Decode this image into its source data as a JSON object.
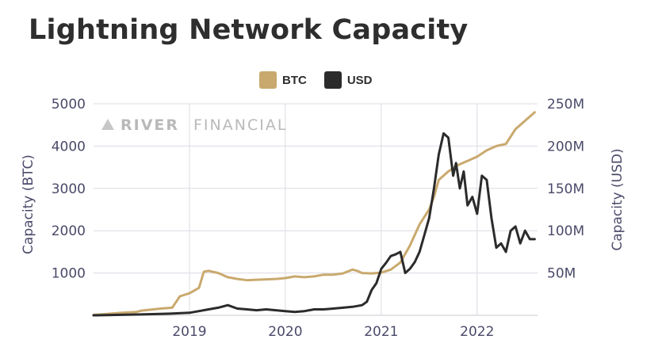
{
  "chart_data": {
    "type": "line",
    "title": "Lightning Network Capacity",
    "watermark": {
      "bold": "RIVER",
      "light": "FINANCIAL"
    },
    "left_axis": {
      "label": "Capacity (BTC)",
      "min": 0,
      "max": 5000,
      "ticks": [
        "1000",
        "2000",
        "3000",
        "4000",
        "5000"
      ],
      "tick_values": [
        1000,
        2000,
        3000,
        4000,
        5000
      ]
    },
    "right_axis": {
      "label": "Capacity (USD)",
      "min": 0,
      "max": 250,
      "ticks": [
        "50M",
        "100M",
        "150M",
        "200M",
        "250M"
      ],
      "tick_values": [
        50,
        100,
        150,
        200,
        250
      ]
    },
    "x_axis": {
      "min": 2018.0,
      "max": 2022.63,
      "ticks": [
        "2019",
        "2020",
        "2021",
        "2022"
      ],
      "tick_values": [
        2019,
        2020,
        2021,
        2022
      ]
    },
    "grid": true,
    "legend_position": "top-center",
    "series": [
      {
        "name": "BTC",
        "axis": "left",
        "color": "#c9a96e",
        "x": [
          2018.0,
          2018.3,
          2018.45,
          2018.5,
          2018.7,
          2018.82,
          2018.9,
          2019.0,
          2019.1,
          2019.15,
          2019.2,
          2019.3,
          2019.4,
          2019.5,
          2019.6,
          2019.7,
          2019.8,
          2019.9,
          2020.0,
          2020.1,
          2020.2,
          2020.3,
          2020.4,
          2020.5,
          2020.6,
          2020.7,
          2020.75,
          2020.8,
          2020.9,
          2021.0,
          2021.1,
          2021.2,
          2021.3,
          2021.4,
          2021.5,
          2021.55,
          2021.6,
          2021.7,
          2021.8,
          2021.9,
          2022.0,
          2022.1,
          2022.2,
          2022.3,
          2022.4,
          2022.5,
          2022.6
        ],
        "values": [
          10,
          60,
          80,
          110,
          160,
          180,
          450,
          520,
          650,
          1030,
          1050,
          1000,
          900,
          860,
          830,
          840,
          850,
          860,
          880,
          920,
          900,
          920,
          960,
          960,
          990,
          1080,
          1050,
          1000,
          990,
          1010,
          1080,
          1250,
          1650,
          2150,
          2500,
          2800,
          3200,
          3400,
          3550,
          3650,
          3750,
          3900,
          4000,
          4050,
          4400,
          4600,
          4800
        ]
      },
      {
        "name": "USD",
        "axis": "right",
        "color": "#2b2b2b",
        "x": [
          2018.0,
          2018.5,
          2018.8,
          2019.0,
          2019.1,
          2019.2,
          2019.3,
          2019.4,
          2019.5,
          2019.6,
          2019.7,
          2019.8,
          2019.9,
          2020.0,
          2020.1,
          2020.2,
          2020.3,
          2020.4,
          2020.5,
          2020.6,
          2020.7,
          2020.8,
          2020.85,
          2020.9,
          2020.95,
          2021.0,
          2021.05,
          2021.1,
          2021.15,
          2021.2,
          2021.25,
          2021.3,
          2021.35,
          2021.4,
          2021.45,
          2021.5,
          2021.55,
          2021.6,
          2021.65,
          2021.7,
          2021.75,
          2021.78,
          2021.82,
          2021.86,
          2021.9,
          2021.95,
          2022.0,
          2022.05,
          2022.1,
          2022.15,
          2022.2,
          2022.25,
          2022.3,
          2022.35,
          2022.4,
          2022.45,
          2022.5,
          2022.55,
          2022.6
        ],
        "values": [
          0,
          1,
          2,
          3,
          5,
          7,
          9,
          12,
          8,
          7,
          6,
          7,
          6,
          5,
          4,
          5,
          7,
          7,
          8,
          9,
          10,
          12,
          16,
          30,
          38,
          55,
          62,
          70,
          72,
          75,
          50,
          55,
          63,
          75,
          95,
          115,
          150,
          190,
          215,
          210,
          165,
          180,
          150,
          170,
          130,
          140,
          120,
          165,
          160,
          115,
          80,
          85,
          75,
          100,
          105,
          85,
          100,
          90,
          90
        ]
      }
    ]
  }
}
